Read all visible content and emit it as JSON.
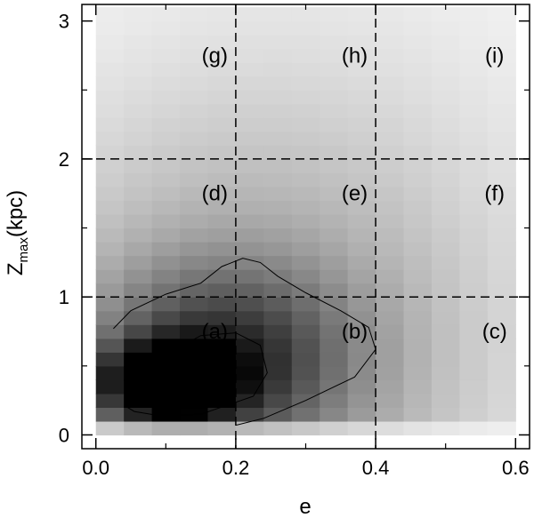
{
  "chart_data": {
    "type": "heatmap",
    "title": "",
    "xlabel": "e",
    "ylabel_main": "Z",
    "ylabel_sub": "max",
    "ylabel_unit": "(kpc)",
    "xlim": [
      -0.02,
      0.62
    ],
    "ylim": [
      -0.1,
      3.12
    ],
    "xticks": [
      0.0,
      0.2,
      0.4,
      0.6
    ],
    "xtick_labels": [
      "0.0",
      "0.2",
      "0.4",
      "0.6"
    ],
    "yticks": [
      0,
      1,
      2,
      3
    ],
    "ytick_labels": [
      "0",
      "1",
      "2",
      "3"
    ],
    "grid": false,
    "density_cell": {
      "de": 0.04,
      "dz": 0.1,
      "e_min": 0.0,
      "e_max": 0.6,
      "z_min": 0.0,
      "z_max": 3.1
    },
    "density_peak": {
      "e": 0.1,
      "zmax": 0.38
    },
    "dashed_dividers": {
      "e": [
        0.2,
        0.4
      ],
      "zmax": [
        1.0,
        2.0
      ]
    },
    "regions": [
      {
        "label": "(a)",
        "e": 0.17,
        "zmax": 0.75
      },
      {
        "label": "(b)",
        "e": 0.37,
        "zmax": 0.75
      },
      {
        "label": "(c)",
        "e": 0.57,
        "zmax": 0.75
      },
      {
        "label": "(d)",
        "e": 0.17,
        "zmax": 1.75
      },
      {
        "label": "(e)",
        "e": 0.37,
        "zmax": 1.75
      },
      {
        "label": "(f)",
        "e": 0.57,
        "zmax": 1.75
      },
      {
        "label": "(g)",
        "e": 0.17,
        "zmax": 2.75
      },
      {
        "label": "(h)",
        "e": 0.37,
        "zmax": 2.75
      },
      {
        "label": "(i)",
        "e": 0.57,
        "zmax": 2.75
      }
    ],
    "contours": [
      {
        "name": "inner-contour",
        "points": [
          [
            0.045,
            0.2
          ],
          [
            0.06,
            0.4
          ],
          [
            0.1,
            0.58
          ],
          [
            0.15,
            0.72
          ],
          [
            0.2,
            0.74
          ],
          [
            0.235,
            0.65
          ],
          [
            0.245,
            0.45
          ],
          [
            0.225,
            0.28
          ],
          [
            0.15,
            0.15
          ],
          [
            0.09,
            0.14
          ],
          [
            0.055,
            0.17
          ],
          [
            0.045,
            0.2
          ]
        ]
      },
      {
        "name": "outer-contour",
        "points": [
          [
            0.025,
            0.77
          ],
          [
            0.05,
            0.9
          ],
          [
            0.1,
            1.02
          ],
          [
            0.15,
            1.1
          ],
          [
            0.18,
            1.22
          ],
          [
            0.21,
            1.28
          ],
          [
            0.235,
            1.25
          ],
          [
            0.26,
            1.15
          ],
          [
            0.3,
            1.03
          ],
          [
            0.35,
            0.9
          ],
          [
            0.39,
            0.78
          ],
          [
            0.4,
            0.62
          ],
          [
            0.37,
            0.42
          ],
          [
            0.3,
            0.25
          ],
          [
            0.24,
            0.12
          ],
          [
            0.2,
            0.07
          ]
        ]
      }
    ]
  }
}
